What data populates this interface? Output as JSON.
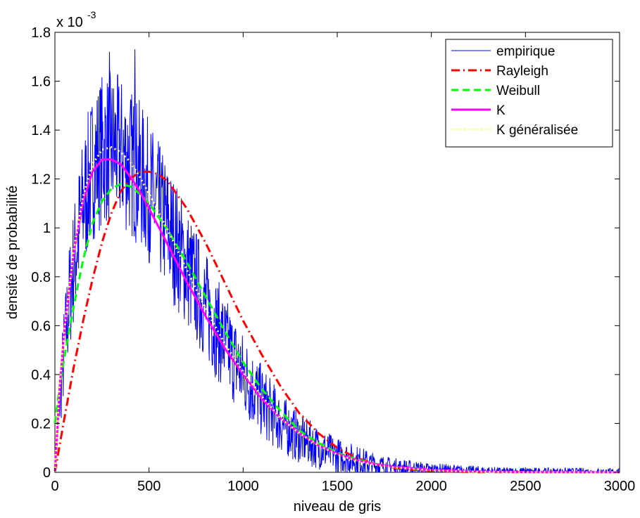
{
  "chart_data": {
    "type": "line",
    "title": "",
    "xlabel": "niveau de gris",
    "ylabel": "densité de probabilité",
    "xlim": [
      0,
      3000
    ],
    "ylim": [
      0,
      0.0018
    ],
    "x_ticks": [
      0,
      500,
      1000,
      1500,
      2000,
      2500,
      3000
    ],
    "x_tick_labels": [
      "0",
      "500",
      "1000",
      "1500",
      "2000",
      "2500",
      "3000"
    ],
    "y_ticks": [
      0,
      0.0002,
      0.0004,
      0.0006,
      0.0008,
      0.001,
      0.0012,
      0.0014,
      0.0016,
      0.0018
    ],
    "y_tick_labels": [
      "0",
      "0.2",
      "0.4",
      "0.6",
      "0.8",
      "1",
      "1.2",
      "1.4",
      "1.6",
      "1.8"
    ],
    "y_multiplier": {
      "base": "x 10",
      "exponent": "-3"
    },
    "grid": false,
    "legend_position": "top-right",
    "series": [
      {
        "name": "empirique",
        "color": "#0000ff",
        "style": "solid-thin",
        "model": "noisy-histogram",
        "x": [
          0,
          25,
          50,
          75,
          100,
          150,
          200,
          250,
          300,
          350,
          400,
          450,
          500,
          600,
          700,
          800,
          900,
          1000,
          1100,
          1200,
          1300,
          1400,
          1500,
          1600,
          1700,
          1800,
          1900,
          2000,
          2200,
          2400,
          2600,
          2800,
          3000
        ],
        "y": [
          0.0,
          0.0003,
          0.0005,
          0.0007,
          0.00085,
          0.0011,
          0.00125,
          0.00132,
          0.00133,
          0.00131,
          0.00127,
          0.00122,
          0.00115,
          0.001,
          0.00084,
          0.00068,
          0.00053,
          0.0004,
          0.00029,
          0.0002,
          0.00014,
          0.0001,
          7e-05,
          5e-05,
          3e-05,
          2e-05,
          1.5e-05,
          1e-05,
          6e-06,
          3e-06,
          2e-06,
          1e-06,
          0.0
        ],
        "peak_values": [
          0.00172,
          0.00173
        ]
      },
      {
        "name": "Rayleigh",
        "color": "#ff0000",
        "style": "dash-dot",
        "x": [
          0,
          50,
          100,
          150,
          200,
          250,
          300,
          350,
          400,
          450,
          500,
          550,
          600,
          700,
          800,
          900,
          1000,
          1100,
          1200,
          1300,
          1400,
          1500,
          1600,
          1700,
          1800,
          2000,
          2200,
          2500,
          3000
        ],
        "y": [
          0.0,
          0.00022,
          0.00043,
          0.00062,
          0.00079,
          0.00094,
          0.00106,
          0.00115,
          0.0012,
          0.00123,
          0.00123,
          0.00122,
          0.00119,
          0.00108,
          0.00094,
          0.00078,
          0.00062,
          0.00048,
          0.00035,
          0.00024,
          0.00016,
          0.0001,
          6e-05,
          3.4e-05,
          1.8e-05,
          5e-06,
          1e-06,
          0.0,
          0.0
        ]
      },
      {
        "name": "Weibull",
        "color": "#00ff00",
        "style": "dashed",
        "x": [
          0,
          25,
          50,
          100,
          150,
          200,
          250,
          300,
          350,
          400,
          450,
          500,
          600,
          700,
          800,
          900,
          1000,
          1100,
          1200,
          1300,
          1400,
          1500,
          1600,
          1700,
          1800,
          2000,
          2200,
          2500,
          3000
        ],
        "y": [
          0.0002,
          0.00035,
          0.00047,
          0.00068,
          0.00087,
          0.00102,
          0.00111,
          0.00116,
          0.00118,
          0.00117,
          0.00114,
          0.0011,
          0.00099,
          0.00086,
          0.00072,
          0.00058,
          0.00045,
          0.00034,
          0.00025,
          0.00017,
          0.00012,
          8e-05,
          5.4e-05,
          3.5e-05,
          2.2e-05,
          9e-06,
          3e-06,
          0.0,
          0.0
        ]
      },
      {
        "name": "K",
        "color": "#ff00ff",
        "style": "solid-thick",
        "x": [
          0,
          25,
          50,
          100,
          150,
          200,
          250,
          300,
          350,
          400,
          450,
          500,
          600,
          700,
          800,
          900,
          1000,
          1100,
          1200,
          1300,
          1400,
          1500,
          1600,
          1700,
          1800,
          2000,
          2200,
          2500,
          3000
        ],
        "y": [
          0.0,
          0.00034,
          0.00058,
          0.0009,
          0.00111,
          0.00123,
          0.00128,
          0.00128,
          0.00126,
          0.00121,
          0.00115,
          0.00108,
          0.00093,
          0.00078,
          0.00064,
          0.00051,
          0.0004,
          0.0003,
          0.00022,
          0.00016,
          0.00011,
          7.6e-05,
          5e-05,
          3.4e-05,
          2.3e-05,
          1e-05,
          4e-06,
          1e-06,
          0.0
        ]
      },
      {
        "name": "K généralisée",
        "color": "#ffff66",
        "style": "dotted",
        "x": [
          0,
          25,
          50,
          100,
          150,
          200,
          250,
          300,
          350,
          400,
          450,
          500,
          600,
          700,
          800,
          900,
          1000,
          1100,
          1200,
          1300,
          1400,
          1500,
          1600,
          1700,
          1800,
          2000,
          2200,
          2500,
          3000
        ],
        "y": [
          0.0,
          0.00035,
          0.00058,
          0.00091,
          0.00113,
          0.00126,
          0.00132,
          0.00133,
          0.00131,
          0.00127,
          0.00121,
          0.00114,
          0.00099,
          0.00083,
          0.00067,
          0.00053,
          0.00041,
          0.00031,
          0.00022,
          0.00016,
          0.00011,
          7.3e-05,
          4.8e-05,
          3.1e-05,
          2e-05,
          8e-06,
          3e-06,
          0.0,
          0.0
        ]
      }
    ]
  }
}
